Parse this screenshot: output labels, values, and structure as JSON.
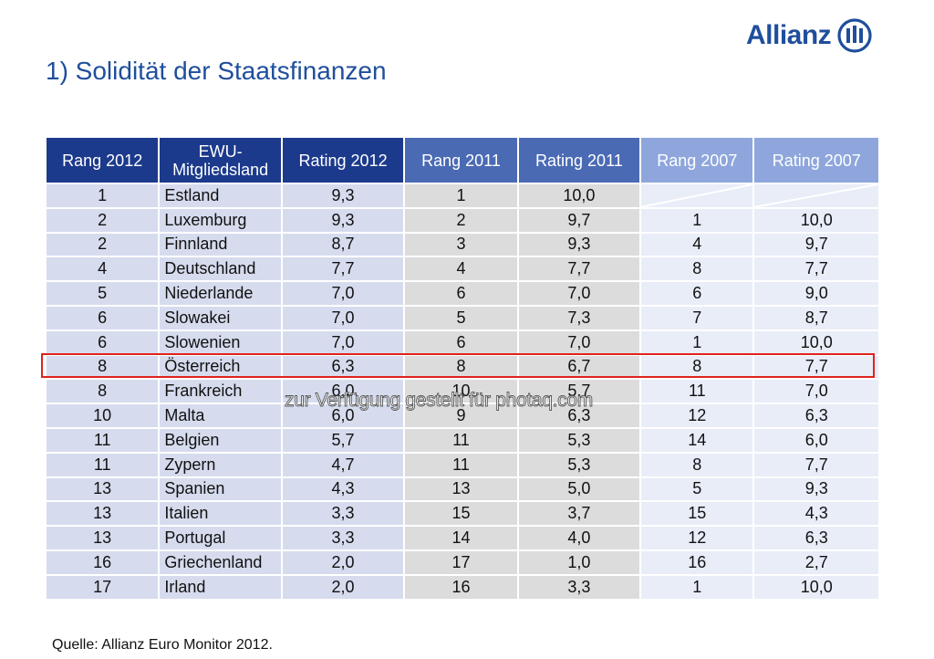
{
  "brand": {
    "name": "Allianz",
    "brand_color": "#1f4e9c"
  },
  "title": "1) Solidität der Staatsfinanzen",
  "table": {
    "headers": [
      {
        "label": "Rang 2012",
        "group": "2012"
      },
      {
        "label": "EWU-\nMitgliedsland",
        "group": "2012"
      },
      {
        "label": "Rating 2012",
        "group": "2012"
      },
      {
        "label": "Rang 2011",
        "group": "2011"
      },
      {
        "label": "Rating 2011",
        "group": "2011"
      },
      {
        "label": "Rang 2007",
        "group": "2007"
      },
      {
        "label": "Rating 2007",
        "group": "2007"
      }
    ],
    "rows": [
      [
        "1",
        "Estland",
        "9,3",
        "1",
        "10,0",
        "",
        ""
      ],
      [
        "2",
        "Luxemburg",
        "9,3",
        "2",
        "9,7",
        "1",
        "10,0"
      ],
      [
        "2",
        "Finnland",
        "8,7",
        "3",
        "9,3",
        "4",
        "9,7"
      ],
      [
        "4",
        "Deutschland",
        "7,7",
        "4",
        "7,7",
        "8",
        "7,7"
      ],
      [
        "5",
        "Niederlande",
        "7,0",
        "6",
        "7,0",
        "6",
        "9,0"
      ],
      [
        "6",
        "Slowakei",
        "7,0",
        "5",
        "7,3",
        "7",
        "8,7"
      ],
      [
        "6",
        "Slowenien",
        "7,0",
        "6",
        "7,0",
        "1",
        "10,0"
      ],
      [
        "8",
        "Österreich",
        "6,3",
        "8",
        "6,7",
        "8",
        "7,7"
      ],
      [
        "8",
        "Frankreich",
        "6,0",
        "10",
        "5,7",
        "11",
        "7,0"
      ],
      [
        "10",
        "Malta",
        "6,0",
        "9",
        "6,3",
        "12",
        "6,3"
      ],
      [
        "11",
        "Belgien",
        "5,7",
        "11",
        "5,3",
        "14",
        "6,0"
      ],
      [
        "11",
        "Zypern",
        "4,7",
        "11",
        "5,3",
        "8",
        "7,7"
      ],
      [
        "13",
        "Spanien",
        "4,3",
        "13",
        "5,0",
        "5",
        "9,3"
      ],
      [
        "13",
        "Italien",
        "3,3",
        "15",
        "3,7",
        "15",
        "4,3"
      ],
      [
        "13",
        "Portugal",
        "3,3",
        "14",
        "4,0",
        "12",
        "6,3"
      ],
      [
        "16",
        "Griechenland",
        "2,0",
        "17",
        "1,0",
        "16",
        "2,7"
      ],
      [
        "17",
        "Irland",
        "2,0",
        "16",
        "3,3",
        "1",
        "10,0"
      ]
    ],
    "highlighted_country": "Österreich",
    "colors": {
      "header_2012": "#1c3a8c",
      "header_2011": "#4a6ab4",
      "header_2007": "#8ea6dc",
      "cell_2012": "#d6dcee",
      "cell_2011": "#dcdcdc",
      "cell_2007": "#e8edf8",
      "highlight_border": "#e0231c"
    }
  },
  "watermark": "zur Verfügung gestellt für photaq.com",
  "source": "Quelle: Allianz Euro Monitor 2012."
}
